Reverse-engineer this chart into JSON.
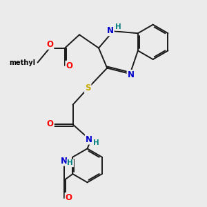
{
  "background_color": "#ebebeb",
  "atom_colors": {
    "C": "#000000",
    "N": "#0000cc",
    "O": "#ff0000",
    "S": "#ccaa00",
    "H": "#008080"
  },
  "bond_color": "#1a1a1a",
  "bond_width": 1.4,
  "font_size_atom": 8.5,
  "font_size_h": 7.5,
  "font_size_methyl": 7.0
}
